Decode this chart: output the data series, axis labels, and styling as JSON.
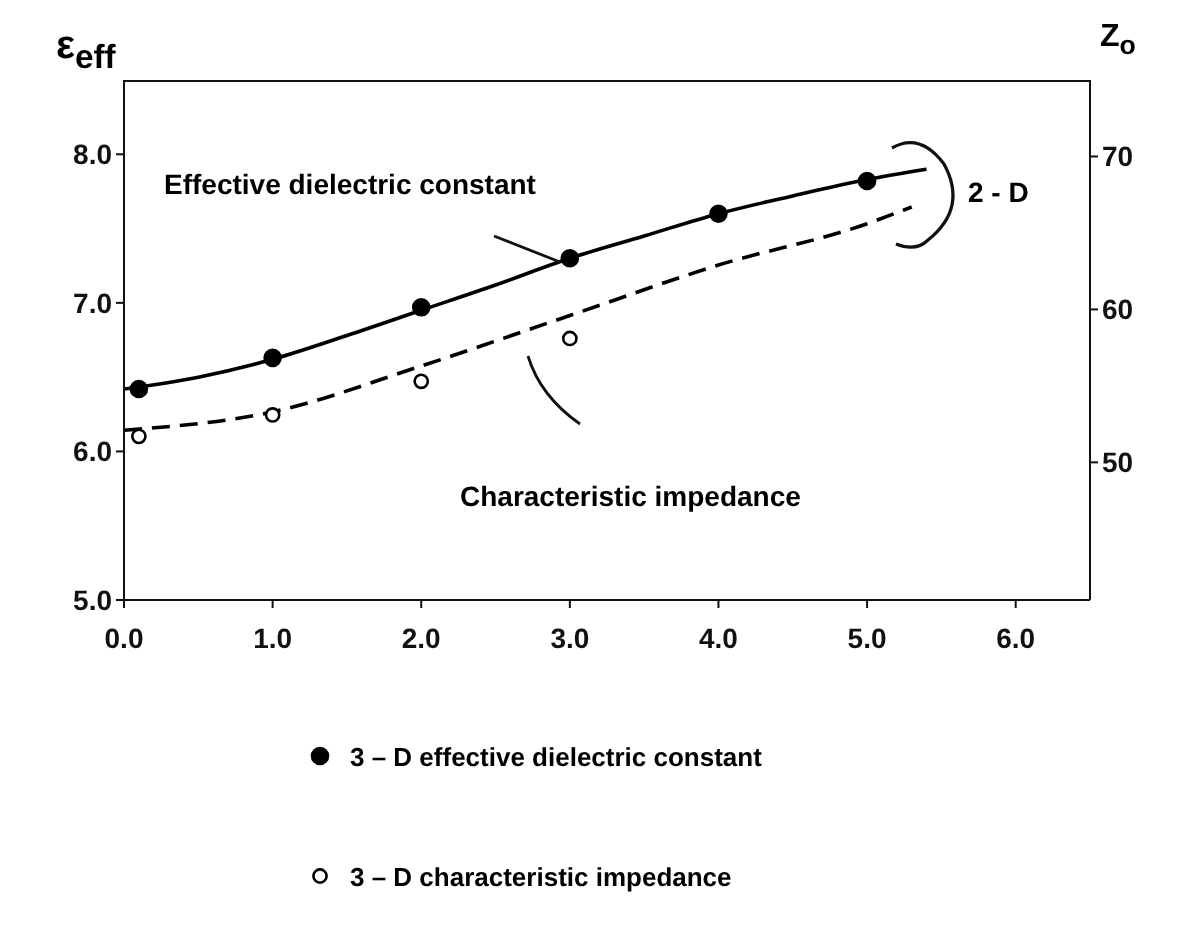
{
  "chart_data": {
    "type": "line",
    "ylabel": "ε$_{eff}$",
    "y2label": "Z$_{o}$",
    "annotations": [
      "Effective dielectric constant",
      "Characteristic impedance",
      "2 - D"
    ],
    "xlim": [
      0,
      6.5
    ],
    "xticks": [
      {
        "value": 0,
        "label": "0.0"
      },
      {
        "value": 1,
        "label": "1.0"
      },
      {
        "value": 2,
        "label": "2.0"
      },
      {
        "value": 3,
        "label": "3.0"
      },
      {
        "value": 4,
        "label": "4.0"
      },
      {
        "value": 5,
        "label": "5.0"
      },
      {
        "value": 6,
        "label": "6.0"
      }
    ],
    "ylim": [
      5,
      8.5
    ],
    "yticks": [
      {
        "value": 5,
        "label": "5.0"
      },
      {
        "value": 6,
        "label": "6.0"
      },
      {
        "value": 7,
        "label": "7.0"
      },
      {
        "value": 8,
        "label": "8.0"
      }
    ],
    "y2lim": [
      41,
      75
    ],
    "y2ticks": [
      50,
      60,
      70
    ],
    "grid": false,
    "legend": "bottom",
    "series": [
      {
        "line_style": "solid",
        "marker": "none",
        "color": "#000000",
        "x": [
          0,
          0.5,
          1,
          1.5,
          2,
          2.5,
          3,
          3.5,
          4,
          4.5,
          5,
          5.4
        ],
        "values": [
          6.42,
          6.5,
          6.62,
          6.78,
          6.95,
          7.12,
          7.3,
          7.45,
          7.6,
          7.72,
          7.83,
          7.9
        ]
      },
      {
        "axis": "y2",
        "line_style": "dashed",
        "marker": "none",
        "color": "#000000",
        "x": [
          0,
          1,
          2,
          3,
          4,
          5,
          5.3
        ],
        "values": [
          52.1,
          53.3,
          56.3,
          59.6,
          62.9,
          65.6,
          66.7
        ]
      },
      {
        "name": "3 – D effective dielectric constant",
        "type": "scatter",
        "marker": "circle",
        "color": "#000000",
        "x": [
          0.1,
          1,
          2,
          3,
          4,
          5
        ],
        "values": [
          6.42,
          6.63,
          6.97,
          7.3,
          7.6,
          7.82
        ]
      },
      {
        "name": "3 – D characteristic impedance",
        "type": "scatter",
        "axis": "y2",
        "marker": "circle",
        "color": "#000000",
        "x": [
          0.1,
          1,
          2,
          3
        ],
        "values": [
          51.7,
          53.1,
          55.3,
          58.1
        ]
      }
    ]
  }
}
